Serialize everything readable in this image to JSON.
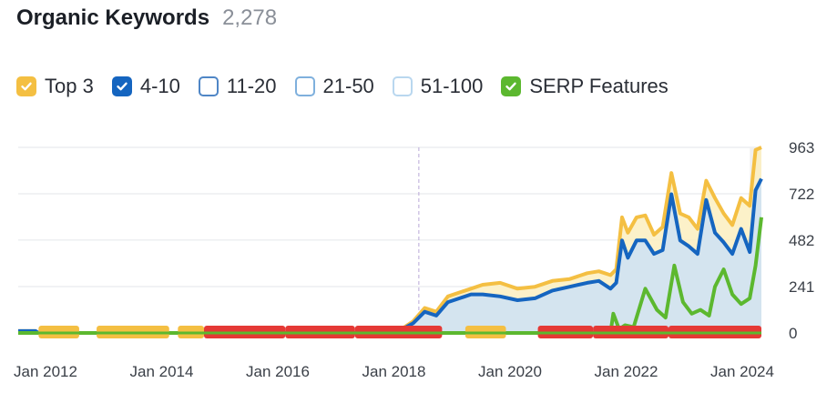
{
  "header": {
    "title": "Organic Keywords",
    "count": "2,278"
  },
  "legend": [
    {
      "label": "Top 3",
      "checked": true,
      "color": "#f4bf42"
    },
    {
      "label": "4-10",
      "checked": true,
      "color": "#1565c0"
    },
    {
      "label": "11-20",
      "checked": false,
      "color": "#4f86c6"
    },
    {
      "label": "21-50",
      "checked": false,
      "color": "#7fb0dd"
    },
    {
      "label": "51-100",
      "checked": false,
      "color": "#b9d7ef"
    },
    {
      "label": "SERP Features",
      "checked": true,
      "color": "#5cb82f"
    }
  ],
  "chart_data": {
    "type": "area",
    "x_tick_labels": [
      "Jan 2012",
      "Jan 2014",
      "Jan 2016",
      "Jan 2018",
      "Jan 2020",
      "Jan 2022",
      "Jan 2024"
    ],
    "y_tick_labels": [
      "963",
      "722",
      "482",
      "241",
      "0"
    ],
    "ylim": [
      0,
      963
    ],
    "xlim": [
      2012.0,
      2024.8
    ],
    "grid": true,
    "marker_line_x": 2018.9,
    "series": [
      {
        "name": "Top 3",
        "color": "#f4bf42",
        "x": [
          2012.0,
          2012.3,
          2012.35,
          2018.5,
          2018.8,
          2019.0,
          2019.2,
          2019.4,
          2019.6,
          2019.8,
          2020.0,
          2020.3,
          2020.6,
          2020.9,
          2021.2,
          2021.5,
          2021.8,
          2022.0,
          2022.2,
          2022.3,
          2022.4,
          2022.5,
          2022.65,
          2022.8,
          2022.95,
          2023.1,
          2023.25,
          2023.4,
          2023.55,
          2023.7,
          2023.85,
          2024.0,
          2024.15,
          2024.3,
          2024.45,
          2024.6,
          2024.7,
          2024.8
        ],
        "values": [
          10,
          10,
          0,
          0,
          60,
          130,
          110,
          190,
          210,
          230,
          250,
          260,
          230,
          240,
          270,
          280,
          310,
          320,
          300,
          330,
          600,
          520,
          600,
          610,
          510,
          550,
          830,
          620,
          600,
          540,
          790,
          700,
          620,
          560,
          700,
          660,
          950,
          963
        ]
      },
      {
        "name": "4-10",
        "color": "#1565c0",
        "x": [
          2012.0,
          2012.3,
          2012.35,
          2018.5,
          2018.8,
          2019.0,
          2019.2,
          2019.4,
          2019.6,
          2019.8,
          2020.0,
          2020.3,
          2020.6,
          2020.9,
          2021.2,
          2021.5,
          2021.8,
          2022.0,
          2022.2,
          2022.3,
          2022.4,
          2022.5,
          2022.65,
          2022.8,
          2022.95,
          2023.1,
          2023.25,
          2023.4,
          2023.55,
          2023.7,
          2023.85,
          2024.0,
          2024.15,
          2024.3,
          2024.45,
          2024.6,
          2024.7,
          2024.8
        ],
        "values": [
          10,
          10,
          0,
          0,
          50,
          110,
          90,
          160,
          180,
          200,
          200,
          190,
          170,
          180,
          220,
          240,
          260,
          270,
          230,
          260,
          480,
          390,
          480,
          480,
          410,
          430,
          720,
          480,
          450,
          410,
          690,
          520,
          470,
          410,
          540,
          420,
          740,
          800
        ]
      },
      {
        "name": "SERP Features",
        "color": "#5cb82f",
        "x": [
          2012.0,
          2022.2,
          2022.25,
          2022.35,
          2022.45,
          2022.6,
          2022.8,
          2023.0,
          2023.15,
          2023.3,
          2023.45,
          2023.6,
          2023.75,
          2023.9,
          2024.0,
          2024.15,
          2024.3,
          2024.45,
          2024.6,
          2024.7,
          2024.8
        ],
        "values": [
          0,
          0,
          100,
          20,
          40,
          30,
          230,
          120,
          80,
          350,
          160,
          100,
          120,
          90,
          240,
          330,
          200,
          150,
          180,
          350,
          600
        ]
      }
    ],
    "annotation_rows": [
      {
        "from": 2012.35,
        "to": 2013.05,
        "color": "#f4bf42"
      },
      {
        "from": 2013.35,
        "to": 2014.6,
        "color": "#f4bf42"
      },
      {
        "from": 2014.75,
        "to": 2015.2,
        "color": "#f4bf42"
      },
      {
        "from": 2015.2,
        "to": 2016.6,
        "color": "#e53935"
      },
      {
        "from": 2016.6,
        "to": 2017.8,
        "color": "#e53935"
      },
      {
        "from": 2017.8,
        "to": 2019.3,
        "color": "#e53935"
      },
      {
        "from": 2019.7,
        "to": 2020.4,
        "color": "#f4bf42"
      },
      {
        "from": 2020.95,
        "to": 2021.9,
        "color": "#e53935"
      },
      {
        "from": 2021.9,
        "to": 2023.2,
        "color": "#e53935"
      },
      {
        "from": 2023.2,
        "to": 2024.8,
        "color": "#e53935"
      }
    ]
  }
}
